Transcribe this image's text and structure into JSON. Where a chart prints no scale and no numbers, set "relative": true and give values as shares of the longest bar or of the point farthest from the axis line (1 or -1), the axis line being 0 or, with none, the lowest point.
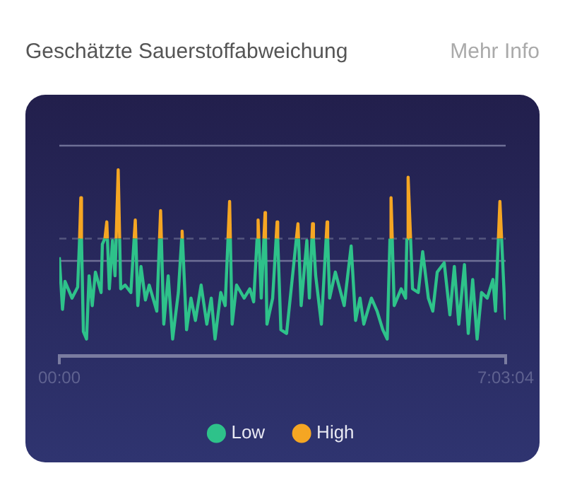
{
  "chart_data": {
    "type": "line",
    "title": "Geschätzte Sauerstoffabweichung",
    "annotations": [
      "Mehr Info"
    ],
    "relative": true,
    "series": [
      {
        "name": "Low",
        "color": "#2ec28a",
        "x": [
          0,
          0.05,
          0.09,
          0.2,
          0.29,
          0.32,
          0.34,
          0.35,
          0.38,
          0.43,
          0.47,
          0.52,
          0.57,
          0.66,
          0.68,
          0.72,
          0.74,
          0.76,
          0.79,
          0.84,
          0.88,
          0.898,
          0.93,
          0.953,
          0.97,
          1.04,
          1.13,
          1.182,
          1.2,
          1.209,
          1.24,
          1.29,
          1.36,
          1.42,
          1.54,
          1.583,
          1.6,
          1.612,
          1.65,
          1.72,
          1.79,
          1.88,
          1.933,
          1.94,
          1.945,
          2.01,
          2.08,
          2.15,
          2.24,
          2.33,
          2.4,
          2.46,
          2.55,
          2.62,
          2.665,
          2.69,
          2.702,
          2.73,
          2.8,
          2.92,
          3.01,
          3.07,
          3.124,
          3.14,
          3.152,
          3.19,
          3.232,
          3.25,
          3.257,
          3.28,
          3.37,
          3.425,
          3.44,
          3.45,
          3.5,
          3.59,
          3.745,
          3.77,
          3.779,
          3.82,
          3.91,
          3.95,
          3.99,
          4,
          4.014,
          4.05,
          4.14,
          4.215,
          4.23,
          4.239,
          4.27,
          4.36,
          4.43,
          4.5,
          4.61,
          4.68,
          4.75,
          4.81,
          4.93,
          5.02,
          5.11,
          5.18,
          5.223,
          5.24,
          5.259,
          5.29,
          5.4,
          5.47,
          5.49,
          5.51,
          5.549,
          5.58,
          5.67,
          5.74,
          5.83,
          5.9,
          5.97,
          6.08,
          6.17,
          6.24,
          6.31,
          6.4,
          6.46,
          6.53,
          6.6,
          6.67,
          6.76,
          6.85,
          6.89,
          6.936,
          6.96,
          6.987,
          7.03,
          7.05
        ],
        "values": [
          0.53,
          0.25,
          0.4,
          0.31,
          0.37,
          0.63,
          null,
          0.63,
          0.13,
          0.09,
          0.43,
          0.27,
          0.45,
          0.34,
          0.6,
          0.63,
          null,
          0.63,
          0.36,
          0.62,
          0.43,
          0.63,
          null,
          0.63,
          0.36,
          0.38,
          0.34,
          0.63,
          null,
          0.63,
          0.27,
          0.48,
          0.3,
          0.38,
          0.24,
          0.63,
          null,
          0.63,
          0.17,
          0.43,
          0.09,
          0.34,
          0.63,
          null,
          0.63,
          0.14,
          0.31,
          0.19,
          0.38,
          0.17,
          0.31,
          0.09,
          0.34,
          0.27,
          0.63,
          null,
          0.63,
          0.17,
          0.38,
          0.31,
          0.36,
          0.29,
          0.63,
          null,
          0.63,
          0.31,
          0.63,
          null,
          0.63,
          0.17,
          0.31,
          0.63,
          null,
          0.63,
          0.14,
          0.12,
          0.63,
          null,
          0.63,
          0.27,
          0.62,
          0.31,
          0.63,
          null,
          0.63,
          0.43,
          0.17,
          0.63,
          null,
          0.63,
          0.31,
          0.45,
          0.36,
          0.27,
          0.59,
          0.19,
          0.31,
          0.17,
          0.31,
          0.24,
          0.14,
          0.09,
          0.63,
          null,
          0.63,
          0.27,
          0.36,
          0.31,
          0.63,
          null,
          0.63,
          0.36,
          0.34,
          0.56,
          0.31,
          0.24,
          0.45,
          0.5,
          0.22,
          0.48,
          0.17,
          0.49,
          0.12,
          0.41,
          0.09,
          0.34,
          0.31,
          0.41,
          0.24,
          0.63,
          null,
          0.63,
          0.31,
          0.2
        ]
      },
      {
        "name": "High",
        "color": "#f5a623",
        "x": [
          0.32,
          0.34,
          0.35,
          0.36,
          0.72,
          0.75,
          0.76,
          0.8,
          0.898,
          0.93,
          0.953,
          1,
          1.182,
          1.2,
          1.209,
          1.3,
          1.583,
          1.6,
          1.612,
          1.7,
          1.933,
          1.94,
          1.945,
          2,
          2.665,
          2.69,
          2.702,
          2.8,
          3.124,
          3.14,
          3.152,
          3.2,
          3.232,
          3.25,
          3.257,
          3.3,
          3.425,
          3.44,
          3.45,
          3.5,
          3.745,
          3.77,
          3.779,
          3.8,
          3.99,
          4,
          4.014,
          4.1,
          4.215,
          4.23,
          4.239,
          4.3,
          5.223,
          5.24,
          5.259,
          5.3,
          5.49,
          5.51,
          5.549,
          5.6,
          6.936,
          6.96,
          6.987
        ],
        "values": [
          0.63,
          0.85,
          0.63,
          null,
          0.63,
          0.72,
          0.63,
          null,
          0.63,
          1,
          0.63,
          null,
          0.63,
          0.73,
          0.63,
          null,
          0.63,
          0.78,
          0.63,
          null,
          0.63,
          0.67,
          0.63,
          null,
          0.63,
          0.83,
          0.63,
          null,
          0.63,
          0.73,
          0.63,
          null,
          0.63,
          0.77,
          0.63,
          null,
          0.63,
          0.72,
          0.63,
          null,
          0.63,
          0.71,
          0.63,
          null,
          0.63,
          0.71,
          0.63,
          null,
          0.63,
          0.72,
          0.63,
          null,
          0.63,
          0.85,
          0.63,
          null,
          0.63,
          0.96,
          0.63,
          null,
          0.63,
          0.83,
          0.63
        ]
      }
    ],
    "xlim": [
      0,
      7.0511
    ],
    "xticks": [
      {
        "value": 0,
        "label": "00:00"
      },
      {
        "value": 7.0511,
        "label": "7:03:04"
      }
    ],
    "ref_lines": [
      {
        "axis": "y",
        "value": 1.13,
        "color": "#6e6f96",
        "line_style": "solid"
      },
      {
        "axis": "y",
        "value": 0.63,
        "color": "#55577f",
        "line_style": "dashed"
      },
      {
        "axis": "y",
        "value": 0.51,
        "color": "#6e6f96",
        "line_style": "solid"
      }
    ],
    "grid": false,
    "legend": "bottom",
    "marker": "none",
    "line_style": "solid"
  }
}
